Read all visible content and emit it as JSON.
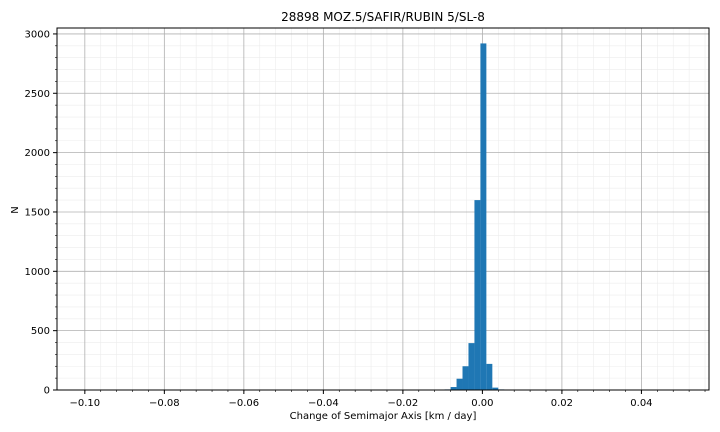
{
  "chart_data": {
    "type": "bar",
    "title": "28898 MOZ.5/SAFIR/RUBIN 5/SL-8",
    "xlabel": "Change of Semimajor Axis [km / day]",
    "ylabel": "N",
    "xlim": [
      -0.107,
      0.057
    ],
    "ylim": [
      0,
      3050
    ],
    "x_ticks": [
      -0.1,
      -0.08,
      -0.06,
      -0.04,
      -0.02,
      0.0,
      0.02,
      0.04
    ],
    "x_tick_labels": [
      "−0.10",
      "−0.08",
      "−0.06",
      "−0.04",
      "−0.02",
      "0.00",
      "0.02",
      "0.04"
    ],
    "y_ticks": [
      0,
      500,
      1000,
      1500,
      2000,
      2500,
      3000
    ],
    "y_tick_labels": [
      "0",
      "500",
      "1000",
      "1500",
      "2000",
      "2500",
      "3000"
    ],
    "grid": true,
    "minor_grid": true,
    "bar_color": "#1f77b4",
    "bins": [
      {
        "x0": -0.0095,
        "x1": -0.008,
        "value": 5
      },
      {
        "x0": -0.008,
        "x1": -0.0065,
        "value": 25
      },
      {
        "x0": -0.0065,
        "x1": -0.005,
        "value": 95
      },
      {
        "x0": -0.005,
        "x1": -0.0035,
        "value": 200
      },
      {
        "x0": -0.0035,
        "x1": -0.002,
        "value": 395
      },
      {
        "x0": -0.002,
        "x1": -0.0005,
        "value": 1600
      },
      {
        "x0": -0.0005,
        "x1": 0.001,
        "value": 2920
      },
      {
        "x0": 0.001,
        "x1": 0.0025,
        "value": 220
      },
      {
        "x0": 0.0025,
        "x1": 0.004,
        "value": 20
      },
      {
        "x0": 0.004,
        "x1": 0.0055,
        "value": 5
      }
    ]
  }
}
